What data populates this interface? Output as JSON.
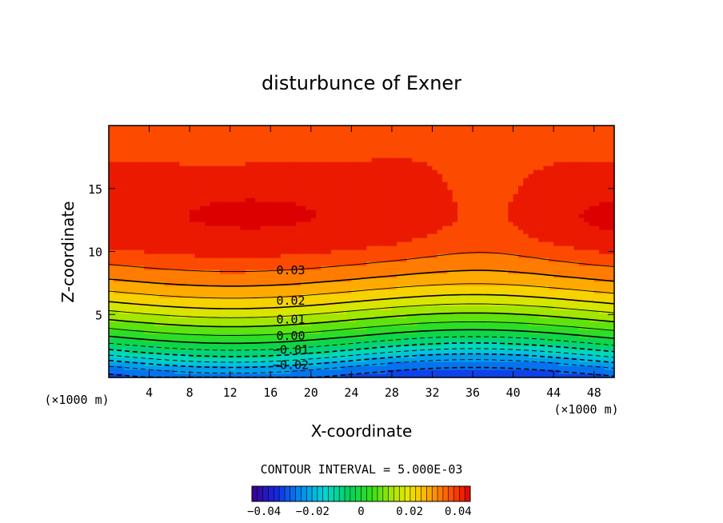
{
  "chart_data": {
    "type": "heatmap",
    "subtype": "filled-contour",
    "title": "disturbunce of Exner",
    "xlabel": "X-coordinate",
    "ylabel": "Z-coordinate",
    "x_unit_left": "(×1000 m)",
    "x_unit_right": "(×1000 m)",
    "xlim": [
      0,
      50
    ],
    "ylim": [
      0,
      20
    ],
    "xticks": [
      4,
      8,
      12,
      16,
      20,
      24,
      28,
      32,
      36,
      40,
      44,
      48
    ],
    "yticks": [
      5,
      10,
      15
    ],
    "contour_interval_text": "CONTOUR INTERVAL = 5.000E-03",
    "contour_interval": 0.005,
    "contour_labels": [
      {
        "text": "0.03",
        "x": 18,
        "z": 8.5
      },
      {
        "text": "0.02",
        "x": 18,
        "z": 6.1
      },
      {
        "text": "0.01",
        "x": 18,
        "z": 4.6
      },
      {
        "text": "0.00",
        "x": 18,
        "z": 3.3
      },
      {
        "text": "−0.01",
        "x": 18,
        "z": 2.2
      },
      {
        "text": "−0.02",
        "x": 18,
        "z": 1.0
      }
    ],
    "colorbar": {
      "range": [
        -0.045,
        0.045
      ],
      "ticks": [
        {
          "label": "−0.04",
          "value": -0.04
        },
        {
          "label": "−0.02",
          "value": -0.02
        },
        {
          "label": "0",
          "value": 0
        },
        {
          "label": "0.02",
          "value": 0.02
        },
        {
          "label": "0.04",
          "value": 0.04
        }
      ]
    },
    "field_profile": {
      "description": "value vs height (z in 1000 m), modulated by x-wave",
      "z": [
        0,
        1,
        2,
        3,
        4,
        5,
        6,
        7,
        8,
        9,
        10,
        11,
        12,
        13,
        15,
        17,
        18,
        20
      ],
      "value": [
        -0.032,
        -0.024,
        -0.012,
        -0.002,
        0.006,
        0.013,
        0.02,
        0.026,
        0.031,
        0.035,
        0.039,
        0.041,
        0.042,
        0.042,
        0.041,
        0.04,
        0.038,
        0.036
      ]
    }
  }
}
